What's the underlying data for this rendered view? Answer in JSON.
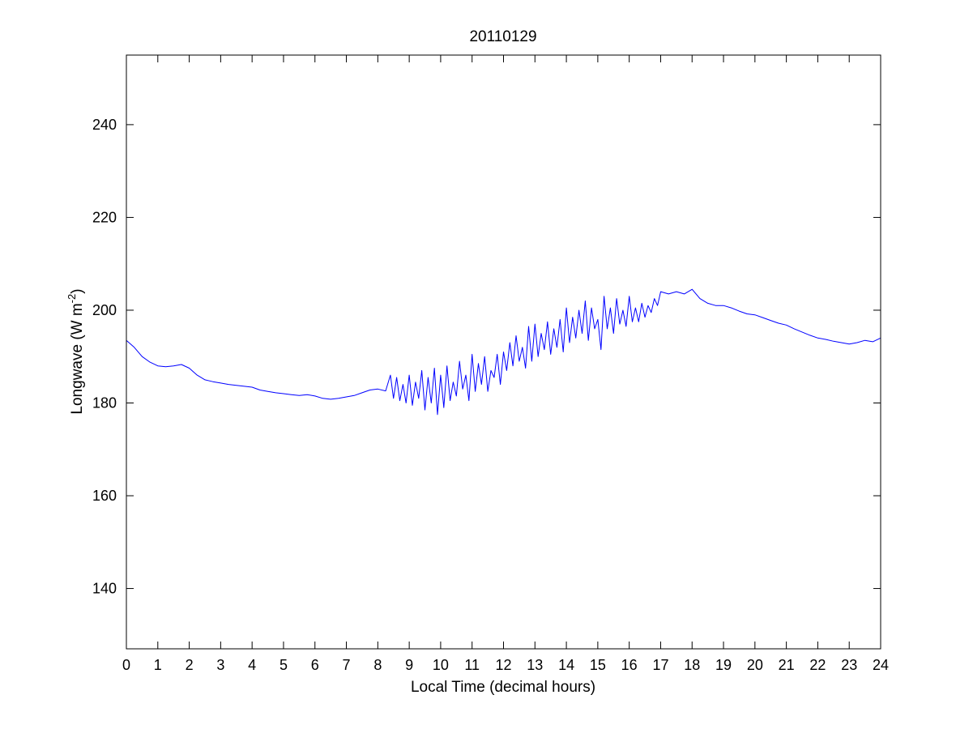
{
  "chart_data": {
    "type": "line",
    "title": "20110129",
    "xlabel": "Local Time (decimal hours)",
    "ylabel": "Longwave (W m",
    "ylabel_sup": "-2",
    "ylabel_close": ")",
    "xlim": [
      0,
      24
    ],
    "ylim": [
      127,
      255
    ],
    "xticks": [
      0,
      1,
      2,
      3,
      4,
      5,
      6,
      7,
      8,
      9,
      10,
      11,
      12,
      13,
      14,
      15,
      16,
      17,
      18,
      19,
      20,
      21,
      22,
      23,
      24
    ],
    "yticks": [
      140,
      160,
      180,
      200,
      220,
      240
    ],
    "grid": false,
    "line_color": "#0000ff",
    "series": [
      {
        "x": [
          0,
          0.25,
          0.5,
          0.75,
          1,
          1.25,
          1.5,
          1.75,
          2,
          2.25,
          2.5,
          2.75,
          3,
          3.25,
          3.5,
          3.75,
          4,
          4.25,
          4.5,
          4.75,
          5,
          5.25,
          5.5,
          5.75,
          6,
          6.25,
          6.5,
          6.75,
          7,
          7.25,
          7.5,
          7.75,
          8,
          8.25,
          8.4,
          8.5,
          8.6,
          8.7,
          8.8,
          8.9,
          9,
          9.1,
          9.2,
          9.3,
          9.4,
          9.5,
          9.6,
          9.7,
          9.8,
          9.9,
          10,
          10.1,
          10.2,
          10.3,
          10.4,
          10.5,
          10.6,
          10.7,
          10.8,
          10.9,
          11,
          11.1,
          11.2,
          11.3,
          11.4,
          11.5,
          11.6,
          11.7,
          11.8,
          11.9,
          12,
          12.1,
          12.2,
          12.3,
          12.4,
          12.5,
          12.6,
          12.7,
          12.8,
          12.9,
          13,
          13.1,
          13.2,
          13.3,
          13.4,
          13.5,
          13.6,
          13.7,
          13.8,
          13.9,
          14,
          14.1,
          14.2,
          14.3,
          14.4,
          14.5,
          14.6,
          14.7,
          14.8,
          14.9,
          15,
          15.1,
          15.2,
          15.3,
          15.4,
          15.5,
          15.6,
          15.7,
          15.8,
          15.9,
          16,
          16.1,
          16.2,
          16.3,
          16.4,
          16.5,
          16.6,
          16.7,
          16.8,
          16.9,
          17,
          17.25,
          17.5,
          17.75,
          18,
          18.25,
          18.5,
          18.75,
          19,
          19.25,
          19.5,
          19.75,
          20,
          20.25,
          20.5,
          20.75,
          21,
          21.25,
          21.5,
          21.75,
          22,
          22.25,
          22.5,
          22.75,
          23,
          23.25,
          23.5,
          23.75,
          24
        ],
        "y": [
          193.5,
          192,
          190,
          188.8,
          188,
          187.8,
          188,
          188.3,
          187.5,
          186,
          185,
          184.6,
          184.3,
          184,
          183.8,
          183.6,
          183.4,
          182.8,
          182.5,
          182.2,
          182,
          181.8,
          181.6,
          181.8,
          181.5,
          181,
          180.8,
          181,
          181.3,
          181.6,
          182.2,
          182.8,
          183,
          182.6,
          186,
          181,
          185.5,
          180.5,
          184,
          180,
          186,
          179.5,
          184.5,
          181,
          187,
          178.5,
          185.5,
          180,
          187.5,
          177.5,
          186,
          179,
          188,
          180.5,
          184.5,
          181.5,
          189,
          183,
          186,
          180.5,
          190.5,
          182.5,
          188.5,
          184,
          190,
          182.5,
          187,
          185.5,
          190.5,
          184,
          191,
          187,
          193,
          188,
          194.5,
          189,
          192,
          187.5,
          196.5,
          189,
          197,
          190,
          195,
          191.5,
          197.5,
          190.5,
          196,
          192,
          198,
          191,
          200.5,
          193,
          198.5,
          194,
          200,
          195,
          202,
          193.5,
          200.5,
          196,
          198,
          191.5,
          203,
          196,
          200.5,
          195,
          202.5,
          197,
          200,
          196.5,
          203,
          197.5,
          200.5,
          197.5,
          201.5,
          198.5,
          201,
          199.5,
          202.5,
          201,
          204,
          203.5,
          204,
          203.5,
          204.5,
          202.5,
          201.5,
          201,
          201,
          200.5,
          199.8,
          199.2,
          199,
          198.4,
          197.8,
          197.2,
          196.8,
          196,
          195.3,
          194.6,
          194,
          193.7,
          193.3,
          193,
          192.7,
          193,
          193.5,
          193.2,
          194
        ]
      }
    ]
  }
}
